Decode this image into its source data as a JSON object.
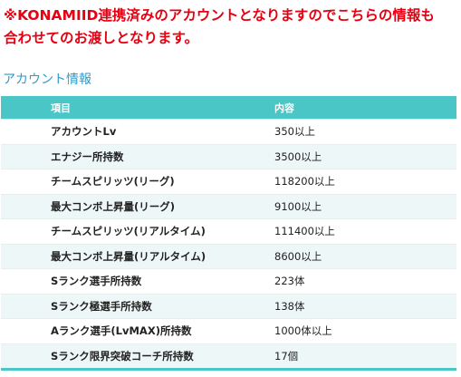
{
  "notice": {
    "line1": "※KONAMIID連携済みのアカウントとなりますのでこちらの情報も",
    "line2": "合わせてのお渡しとなります。"
  },
  "section": {
    "title": "アカウント情報"
  },
  "table": {
    "headers": {
      "item": "項目",
      "content": "内容"
    },
    "rows": [
      {
        "item": "アカウントLv",
        "value": "350以上"
      },
      {
        "item": "エナジー所持数",
        "value": "3500以上"
      },
      {
        "item": "チームスピリッツ(リーグ)",
        "value": "118200以上"
      },
      {
        "item": "最大コンボ上昇量(リーグ)",
        "value": "9100以上"
      },
      {
        "item": "チームスピリッツ(リアルタイム)",
        "value": "111400以上"
      },
      {
        "item": "最大コンボ上昇量(リアルタイム)",
        "value": "8600以上"
      },
      {
        "item": "Sランク選手所持数",
        "value": "223体"
      },
      {
        "item": "Sランク極選手所持数",
        "value": "138体"
      },
      {
        "item": "Aランク選手(LvMAX)所持数",
        "value": "1000体以上"
      },
      {
        "item": "Sランク限界突破コーチ所持数",
        "value": "17個"
      }
    ]
  },
  "colors": {
    "notice": "#e60012",
    "section_title": "#2f9bc6",
    "header_bg": "#4bc6c6",
    "stripe": "#eef7f7"
  }
}
